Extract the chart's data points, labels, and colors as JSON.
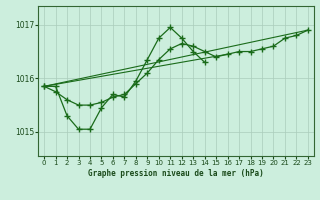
{
  "title": "Graphe pression niveau de la mer (hPa)",
  "background_color": "#cceedd",
  "grid_color": "#aaccbb",
  "line_color": "#1a6b1a",
  "xlim": [
    -0.5,
    23.5
  ],
  "ylim": [
    1014.55,
    1017.35
  ],
  "yticks": [
    1015,
    1016,
    1017
  ],
  "xticks": [
    0,
    1,
    2,
    3,
    4,
    5,
    6,
    7,
    8,
    9,
    10,
    11,
    12,
    13,
    14,
    15,
    16,
    17,
    18,
    19,
    20,
    21,
    22,
    23
  ],
  "series_wavy_x": [
    0,
    1,
    2,
    3,
    4,
    5,
    6,
    7,
    8,
    9,
    10,
    11,
    12,
    13,
    14
  ],
  "series_wavy_y": [
    1015.85,
    1015.85,
    1015.3,
    1015.05,
    1015.05,
    1015.45,
    1015.7,
    1015.65,
    1015.95,
    1016.35,
    1016.75,
    1016.95,
    1016.75,
    1016.5,
    1016.3
  ],
  "series_smooth_x": [
    0,
    1,
    2,
    3,
    4,
    5,
    6,
    7,
    8,
    9,
    10,
    11,
    12,
    13,
    14,
    15,
    16,
    17,
    18,
    19,
    20,
    21,
    22,
    23
  ],
  "series_smooth_y": [
    1015.85,
    1015.75,
    1015.6,
    1015.5,
    1015.5,
    1015.55,
    1015.65,
    1015.7,
    1015.9,
    1016.1,
    1016.35,
    1016.55,
    1016.65,
    1016.6,
    1016.5,
    1016.4,
    1016.45,
    1016.5,
    1016.5,
    1016.55,
    1016.6,
    1016.75,
    1016.8,
    1016.9
  ],
  "trend1_x": [
    0,
    16
  ],
  "trend1_y": [
    1015.85,
    1016.45
  ],
  "trend2_x": [
    0,
    23
  ],
  "trend2_y": [
    1015.85,
    1016.9
  ]
}
